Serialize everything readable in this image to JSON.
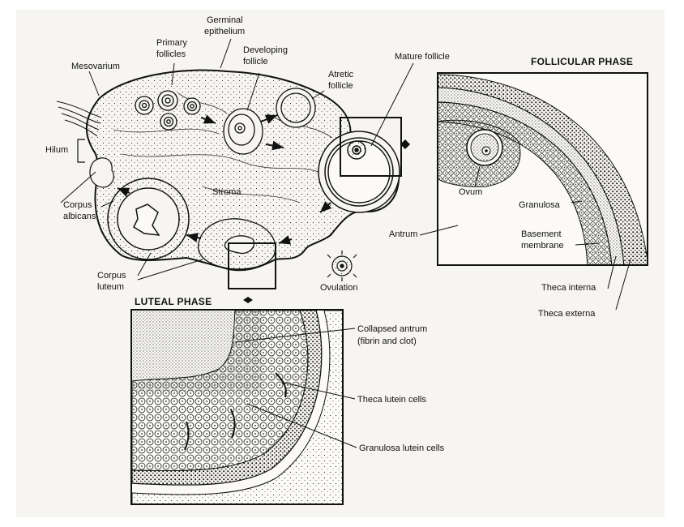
{
  "labels": {
    "germinal_1": "Germinal",
    "germinal_2": "epithelium",
    "primary_1": "Primary",
    "primary_2": "follicles",
    "developing_1": "Developing",
    "developing_2": "follicle",
    "atretic_1": "Atretic",
    "atretic_2": "follicle",
    "mature": "Mature follicle",
    "mesovarium": "Mesovarium",
    "hilum": "Hilum",
    "stroma": "Stroma",
    "corpus_albicans_1": "Corpus",
    "corpus_albicans_2": "albicans",
    "corpus_luteum_1": "Corpus",
    "corpus_luteum_2": "luteum",
    "ovulation": "Ovulation",
    "ovum": "Ovum",
    "granulosa": "Granulosa",
    "antrum": "Antrum",
    "basement_1": "Basement",
    "basement_2": "membrane",
    "theca_interna": "Theca interna",
    "theca_externa": "Theca externa",
    "collapsed_1": "Collapsed antrum",
    "collapsed_2": "(fibrin and clot)",
    "theca_lutein": "Theca lutein cells",
    "granulosa_lutein": "Granulosa lutein cells"
  },
  "headers": {
    "follicular": "FOLLICULAR PHASE",
    "luteal": "LUTEAL PHASE"
  },
  "colors": {
    "ink": "#1a1a1a",
    "paper": "#f7f5f1"
  }
}
